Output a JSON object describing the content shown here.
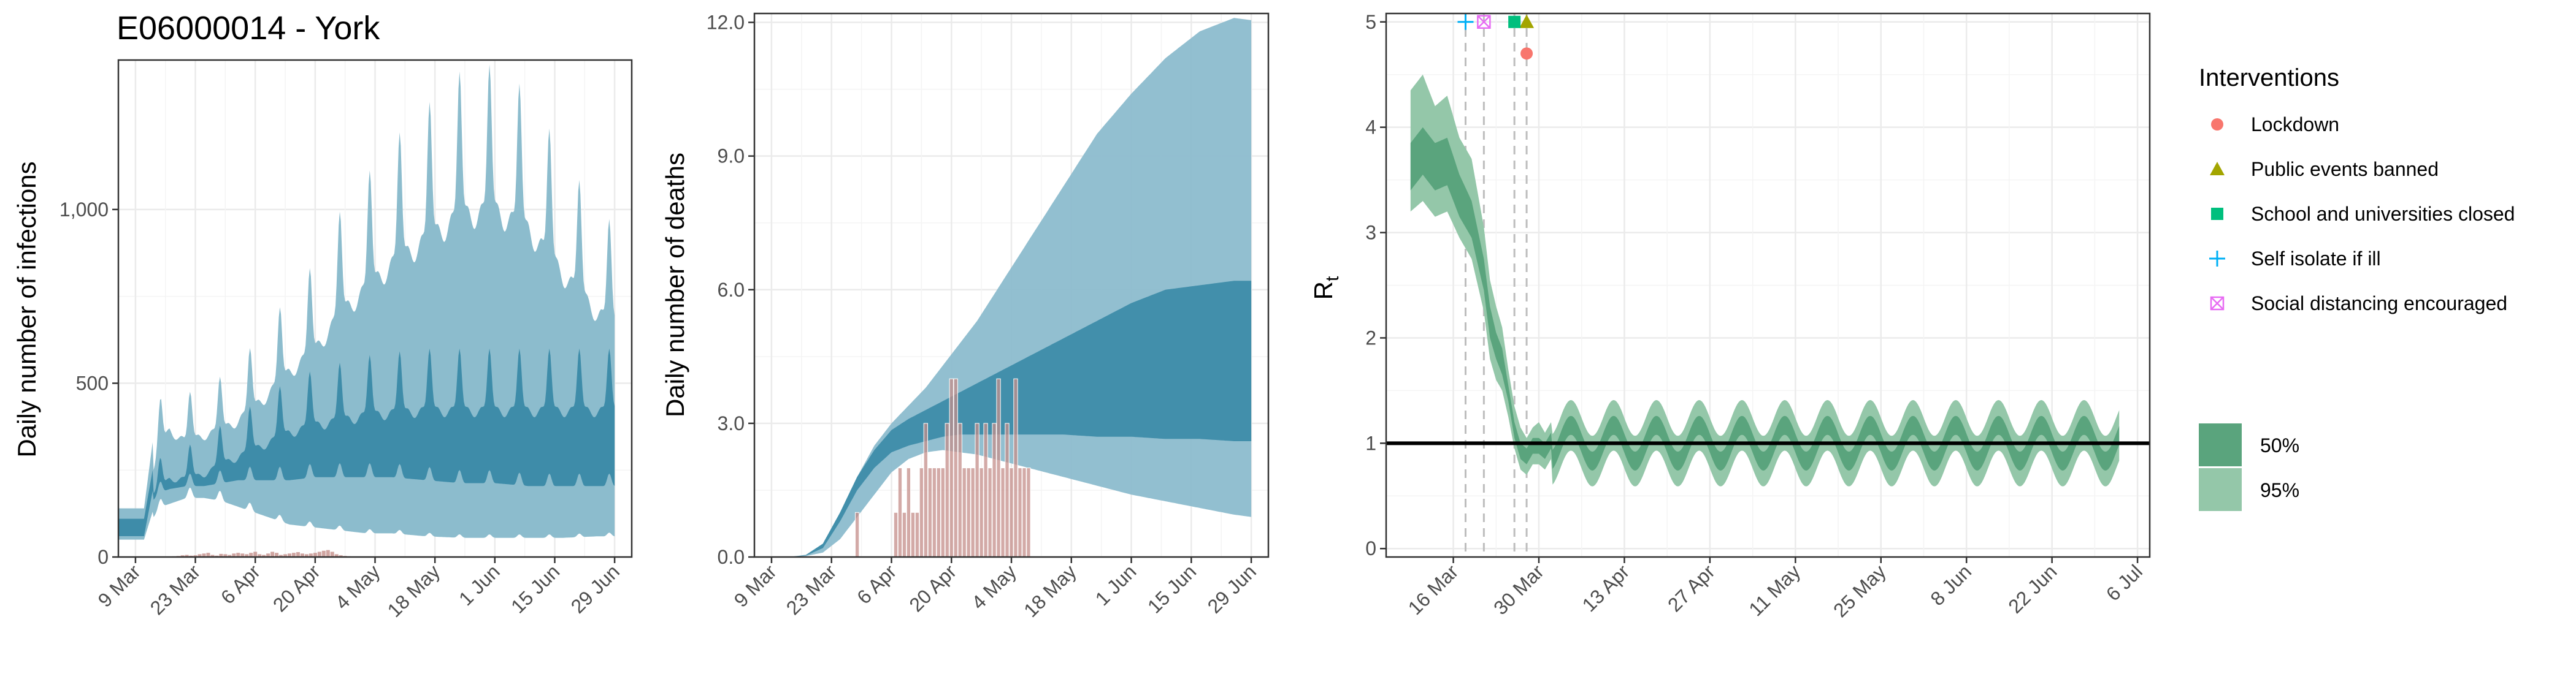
{
  "figure": {
    "title": "E06000014 - York",
    "colors": {
      "infections_ci95": "#8cbccd",
      "infections_ci50": "#3e8ca9",
      "deaths_observed": "#c48e8a",
      "rt_ci95": "#94c7a9",
      "rt_ci50": "#5aa47d",
      "rt_line": "#000000",
      "vline": "#bdbdbd",
      "lockdown": "#f8766d",
      "public_events": "#a3a500",
      "schools": "#00bf7d",
      "self_isolate": "#00b0f6",
      "social_distancing": "#e76bf3"
    }
  },
  "legend": {
    "interventions_title": "Interventions",
    "interventions": [
      {
        "label": "Lockdown",
        "shape": "circle",
        "color_key": "lockdown"
      },
      {
        "label": "Public events banned",
        "shape": "triangle",
        "color_key": "public_events"
      },
      {
        "label": "School and universities closed",
        "shape": "square",
        "color_key": "schools"
      },
      {
        "label": "Self isolate if ill",
        "shape": "plus",
        "color_key": "self_isolate"
      },
      {
        "label": "Social distancing encouraged",
        "shape": "boxed-x",
        "color_key": "social_distancing"
      }
    ],
    "ci_items": [
      {
        "label": "50%",
        "color_key": "rt_ci50"
      },
      {
        "label": "95%",
        "color_key": "rt_ci95"
      }
    ]
  },
  "chart_data": [
    {
      "id": "infections",
      "type": "area",
      "title": "E06000014 - York",
      "ylabel": "Daily number of infections",
      "xlabel": "",
      "x_start": "2020-03-05",
      "xlim": [
        0,
        120
      ],
      "ylim": [
        0,
        1430
      ],
      "yticks": [
        {
          "v": 0,
          "label": "0"
        },
        {
          "v": 500,
          "label": "500"
        },
        {
          "v": 1000,
          "label": "1,000"
        }
      ],
      "xticks": [
        "9 Mar",
        "23 Mar",
        "6 Apr",
        "20 Apr",
        "4 May",
        "18 May",
        "1 Jun",
        "15 Jun",
        "29 Jun"
      ],
      "series": [
        {
          "ci": "95%",
          "days": [
            0,
            6,
            8,
            10,
            12,
            16,
            20,
            24,
            28,
            34,
            40,
            46,
            52,
            58,
            64,
            72,
            80,
            88,
            96,
            104,
            112,
            116
          ],
          "low": [
            50,
            50,
            130,
            170,
            180,
            200,
            200,
            190,
            170,
            140,
            110,
            100,
            90,
            80,
            80,
            70,
            65,
            65,
            65,
            65,
            70,
            70
          ],
          "high": [
            140,
            140,
            330,
            470,
            520,
            470,
            500,
            520,
            560,
            650,
            760,
            850,
            1000,
            1100,
            1200,
            1300,
            1400,
            1420,
            1340,
            1160,
            1000,
            960
          ]
        },
        {
          "ci": "50%",
          "days": [
            0,
            6,
            8,
            10,
            12,
            16,
            20,
            24,
            28,
            34,
            40,
            46,
            52,
            58,
            64,
            72,
            80,
            88,
            96,
            104,
            112,
            116
          ],
          "low": [
            60,
            60,
            190,
            220,
            230,
            240,
            240,
            250,
            260,
            260,
            260,
            270,
            270,
            270,
            270,
            260,
            250,
            250,
            240,
            240,
            240,
            240
          ],
          "high": [
            110,
            110,
            250,
            290,
            320,
            320,
            340,
            380,
            410,
            460,
            510,
            540,
            560,
            580,
            590,
            600,
            600,
            600,
            600,
            600,
            600,
            600
          ]
        }
      ],
      "observed": {
        "start_day": 9,
        "values": [
          0,
          0,
          0,
          0,
          2,
          3,
          5,
          6,
          4,
          5,
          8,
          10,
          12,
          6,
          4,
          9,
          8,
          6,
          10,
          12,
          10,
          8,
          12,
          15,
          8,
          6,
          10,
          15,
          12,
          6,
          8,
          10,
          12,
          14,
          10,
          8,
          10,
          12,
          15,
          18,
          20,
          15,
          8,
          5,
          3,
          2,
          0,
          0,
          0,
          0
        ]
      }
    },
    {
      "id": "deaths",
      "type": "area",
      "ylabel": "Daily number of deaths",
      "xlabel": "",
      "x_start": "2020-03-05",
      "xlim": [
        0,
        120
      ],
      "ylim": [
        0,
        12.2
      ],
      "yticks": [
        {
          "v": 0,
          "label": "0.0"
        },
        {
          "v": 3,
          "label": "3.0"
        },
        {
          "v": 6,
          "label": "6.0"
        },
        {
          "v": 9,
          "label": "9.0"
        },
        {
          "v": 12,
          "label": "12.0"
        }
      ],
      "xticks": [
        "9 Mar",
        "23 Mar",
        "6 Apr",
        "20 Apr",
        "4 May",
        "18 May",
        "1 Jun",
        "15 Jun",
        "29 Jun"
      ],
      "series": [
        {
          "ci": "95%",
          "days": [
            8,
            12,
            16,
            20,
            24,
            28,
            32,
            36,
            40,
            44,
            48,
            52,
            56,
            64,
            72,
            80,
            88,
            96,
            104,
            112,
            116
          ],
          "low": [
            0,
            0.02,
            0.1,
            0.4,
            0.9,
            1.4,
            1.9,
            2.2,
            2.35,
            2.4,
            2.35,
            2.3,
            2.2,
            2.0,
            1.8,
            1.6,
            1.4,
            1.25,
            1.1,
            0.95,
            0.9
          ],
          "high": [
            0,
            0.05,
            0.3,
            1.0,
            1.8,
            2.5,
            3.0,
            3.4,
            3.8,
            4.3,
            4.8,
            5.3,
            5.9,
            7.1,
            8.3,
            9.5,
            10.4,
            11.2,
            11.8,
            12.1,
            12.05
          ]
        },
        {
          "ci": "50%",
          "days": [
            8,
            12,
            16,
            20,
            24,
            28,
            32,
            36,
            40,
            44,
            48,
            52,
            56,
            64,
            72,
            80,
            88,
            96,
            104,
            112,
            116
          ],
          "low": [
            0,
            0.03,
            0.2,
            0.8,
            1.5,
            2.0,
            2.35,
            2.5,
            2.6,
            2.7,
            2.75,
            2.75,
            2.75,
            2.75,
            2.75,
            2.7,
            2.7,
            2.65,
            2.65,
            2.6,
            2.6
          ],
          "high": [
            0,
            0.04,
            0.3,
            1.0,
            1.8,
            2.4,
            2.85,
            3.1,
            3.3,
            3.5,
            3.7,
            3.9,
            4.1,
            4.5,
            4.9,
            5.3,
            5.7,
            6.0,
            6.1,
            6.2,
            6.2
          ]
        }
      ],
      "observed": {
        "start_day": 19,
        "values": [
          0,
          0,
          0,
          0,
          0,
          1,
          0,
          0,
          0,
          0,
          0,
          0,
          0,
          0,
          1,
          2,
          1,
          2,
          1,
          1,
          2,
          3,
          2,
          2,
          2,
          2,
          3,
          4,
          4,
          3,
          2,
          2,
          2,
          3,
          2,
          3,
          2,
          3,
          4,
          2,
          3,
          2,
          4,
          2,
          2,
          2
        ]
      }
    },
    {
      "id": "rt",
      "type": "area",
      "ylabel": "R",
      "ylabel_subscript": "t",
      "xlabel": "",
      "x_start": "2020-03-05",
      "xlim": [
        0,
        125
      ],
      "ylim": [
        -0.08,
        5.08
      ],
      "yticks": [
        {
          "v": 0,
          "label": "0"
        },
        {
          "v": 1,
          "label": "1"
        },
        {
          "v": 2,
          "label": "2"
        },
        {
          "v": 3,
          "label": "3"
        },
        {
          "v": 4,
          "label": "4"
        },
        {
          "v": 5,
          "label": "5"
        }
      ],
      "xticks": [
        "16 Mar",
        "30 Mar",
        "13 Apr",
        "27 Apr",
        "11 May",
        "25 May",
        "8 Jun",
        "22 Jun",
        "6 Jul"
      ],
      "reference_line": 1,
      "series": [
        {
          "ci": "95%",
          "days": [
            4,
            6,
            8,
            10,
            12,
            14,
            16,
            17,
            18,
            19,
            20,
            21,
            22,
            23,
            24,
            25,
            26,
            27
          ],
          "low": [
            3.2,
            3.3,
            3.15,
            3.2,
            2.95,
            2.75,
            2.25,
            1.8,
            1.6,
            1.5,
            1.25,
            0.95,
            0.75,
            0.7,
            0.8,
            0.8,
            0.75,
            0.85
          ],
          "high": [
            4.35,
            4.5,
            4.2,
            4.3,
            3.9,
            3.7,
            3.05,
            2.55,
            2.3,
            2.1,
            1.7,
            1.35,
            1.15,
            1.05,
            1.15,
            1.2,
            1.1,
            1.2
          ]
        },
        {
          "ci": "50%",
          "days": [
            4,
            6,
            8,
            10,
            12,
            14,
            16,
            17,
            18,
            19,
            20,
            21,
            22,
            23,
            24,
            25,
            26,
            27
          ],
          "low": [
            3.4,
            3.55,
            3.4,
            3.45,
            3.15,
            2.95,
            2.45,
            2.0,
            1.8,
            1.65,
            1.4,
            1.05,
            0.85,
            0.8,
            0.9,
            0.9,
            0.85,
            0.95
          ],
          "high": [
            3.85,
            4.0,
            3.85,
            3.9,
            3.55,
            3.3,
            2.75,
            2.3,
            2.05,
            1.9,
            1.55,
            1.2,
            1.0,
            0.95,
            1.05,
            1.05,
            1.0,
            1.1
          ]
        }
      ],
      "periodic_after_day": 27,
      "periodic_end_day": 120,
      "interventions": [
        {
          "type": "lockdown",
          "day": 23,
          "r": 4.7
        },
        {
          "type": "public_events",
          "day": 23,
          "r": 5.0
        },
        {
          "type": "schools",
          "day": 21,
          "r": 5.0
        },
        {
          "type": "self_isolate",
          "day": 13,
          "r": 5.0
        },
        {
          "type": "social_distancing",
          "day": 16,
          "r": 5.0
        }
      ]
    }
  ]
}
